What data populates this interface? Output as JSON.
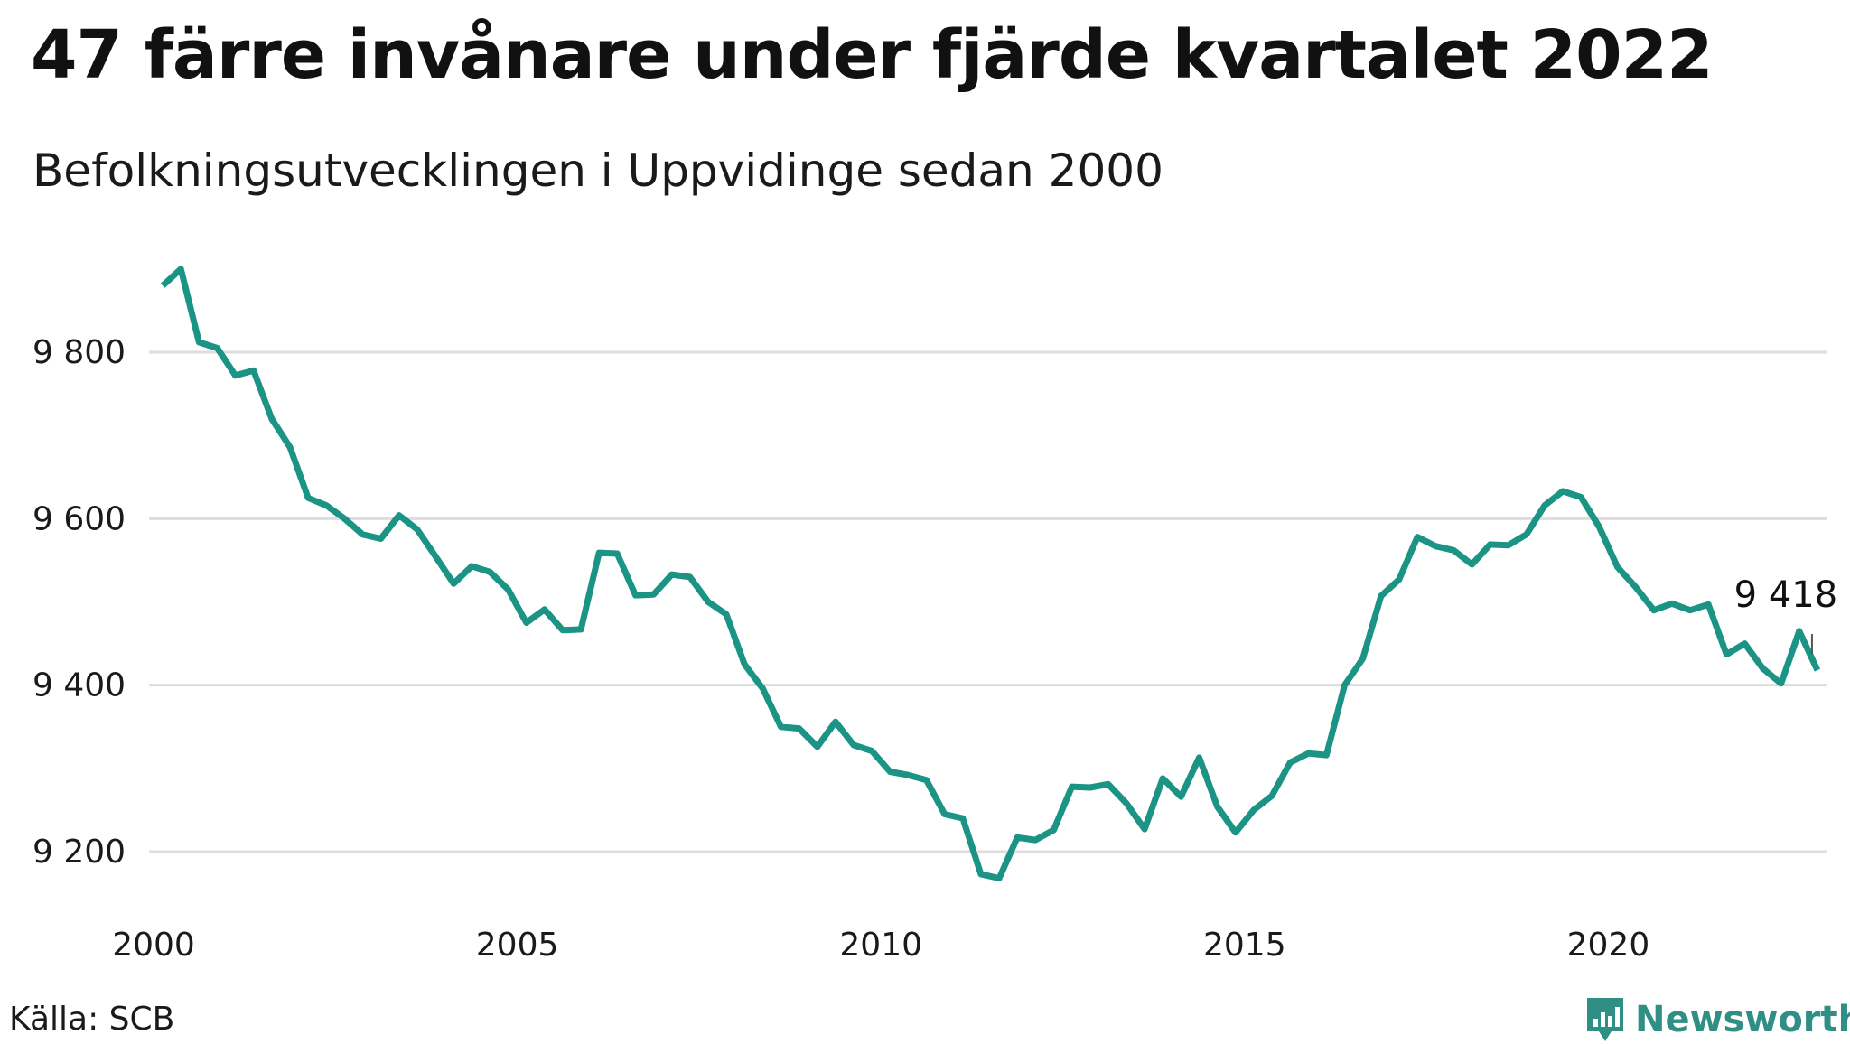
{
  "title": "47 färre invånare under fjärde kvartalet 2022",
  "subtitle": "Befolkningsutvecklingen i Uppvidinge sedan 2000",
  "source": "Källa: SCB",
  "brand": {
    "name": "Newsworthy",
    "icon": "newsworthy-logo-icon",
    "color": "#2f8f85"
  },
  "colors": {
    "line": "#1b9486",
    "grid": "#dddddd"
  },
  "chart_data": {
    "type": "line",
    "title": "47 färre invånare under fjärde kvartalet 2022",
    "subtitle": "Befolkningsutvecklingen i Uppvidinge sedan 2000",
    "xlabel": "",
    "ylabel": "",
    "xlim": [
      2000,
      2023
    ],
    "ylim": [
      9140,
      9920
    ],
    "x_ticks": [
      2000,
      2005,
      2010,
      2015,
      2020
    ],
    "x_tick_labels": [
      "2000",
      "2005",
      "2010",
      "2015",
      "2020"
    ],
    "y_ticks": [
      9200,
      9400,
      9600,
      9800
    ],
    "y_tick_labels": [
      "9 200",
      "9 400",
      "9 600",
      "9 800"
    ],
    "grid": "horizontal",
    "end_label": "9 418",
    "values": [
      9880,
      9900,
      9812,
      9805,
      9772,
      9778,
      9720,
      9686,
      9625,
      9616,
      9600,
      9581,
      9576,
      9604,
      9587,
      9555,
      9522,
      9543,
      9536,
      9515,
      9475,
      9491,
      9466,
      9467,
      9559,
      9558,
      9508,
      9509,
      9533,
      9530,
      9500,
      9485,
      9425,
      9396,
      9350,
      9348,
      9326,
      9356,
      9328,
      9321,
      9296,
      9292,
      9286,
      9245,
      9240,
      9173,
      9168,
      9217,
      9214,
      9226,
      9278,
      9277,
      9281,
      9258,
      9227,
      9288,
      9266,
      9313,
      9254,
      9223,
      9250,
      9267,
      9307,
      9318,
      9316,
      9400,
      9432,
      9507,
      9527,
      9578,
      9567,
      9562,
      9545,
      9569,
      9568,
      9581,
      9616,
      9633,
      9626,
      9590,
      9542,
      9518,
      9490,
      9498,
      9490,
      9497,
      9437,
      9450,
      9420,
      9402,
      9465,
      9418
    ]
  }
}
